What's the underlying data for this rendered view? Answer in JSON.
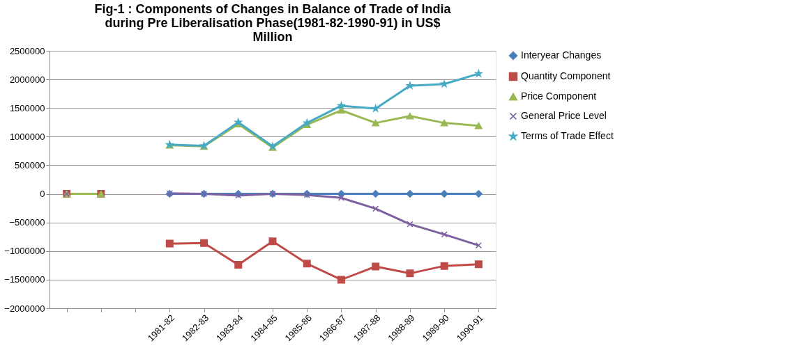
{
  "chart_data": {
    "type": "line",
    "title": [
      "Fig-1 : Components  of Changes in Balance of Trade of India",
      "during Pre Liberalisation  Phase(1981-82-1990-91) in US$",
      "Million"
    ],
    "categories": [
      null,
      null,
      null,
      "1981-82",
      "1982-83",
      "1983-84",
      "1984-85",
      "1985-86",
      "1986-87",
      "1987-88",
      "1988-89",
      "1989-90",
      "1990-91"
    ],
    "series": [
      {
        "name": "Interyear Changes",
        "color": "#4a7ebb",
        "marker": "diamond",
        "values": [
          null,
          null,
          null,
          0,
          0,
          0,
          0,
          0,
          0,
          0,
          0,
          0,
          0
        ]
      },
      {
        "name": "Quantity Component",
        "color": "#be4b48",
        "marker": "square",
        "values": [
          0,
          0,
          null,
          -870000,
          -860000,
          -1240000,
          -830000,
          -1220000,
          -1500000,
          -1270000,
          -1390000,
          -1260000,
          -1230000
        ]
      },
      {
        "name": "Price Component",
        "color": "#98b954",
        "marker": "triangle",
        "values": [
          0,
          0,
          null,
          850000,
          830000,
          1220000,
          810000,
          1210000,
          1460000,
          1240000,
          1360000,
          1240000,
          1190000
        ]
      },
      {
        "name": "General Price Level",
        "color": "#7d60a0",
        "marker": "cross",
        "values": [
          0,
          null,
          null,
          10000,
          0,
          -30000,
          0,
          -20000,
          -70000,
          -260000,
          -530000,
          -710000,
          -900000
        ]
      },
      {
        "name": "Terms of Trade Effect",
        "color": "#46aac5",
        "marker": "star",
        "values": [
          null,
          null,
          null,
          860000,
          840000,
          1250000,
          830000,
          1240000,
          1540000,
          1490000,
          1890000,
          1920000,
          2100000
        ]
      }
    ],
    "ylim": [
      -2000000,
      2500000
    ],
    "yticks": [
      -2000000,
      -1500000,
      -1000000,
      -500000,
      0,
      500000,
      1000000,
      1500000,
      2000000,
      2500000
    ],
    "grid": "y",
    "legend": "right",
    "line_style": "solid"
  }
}
